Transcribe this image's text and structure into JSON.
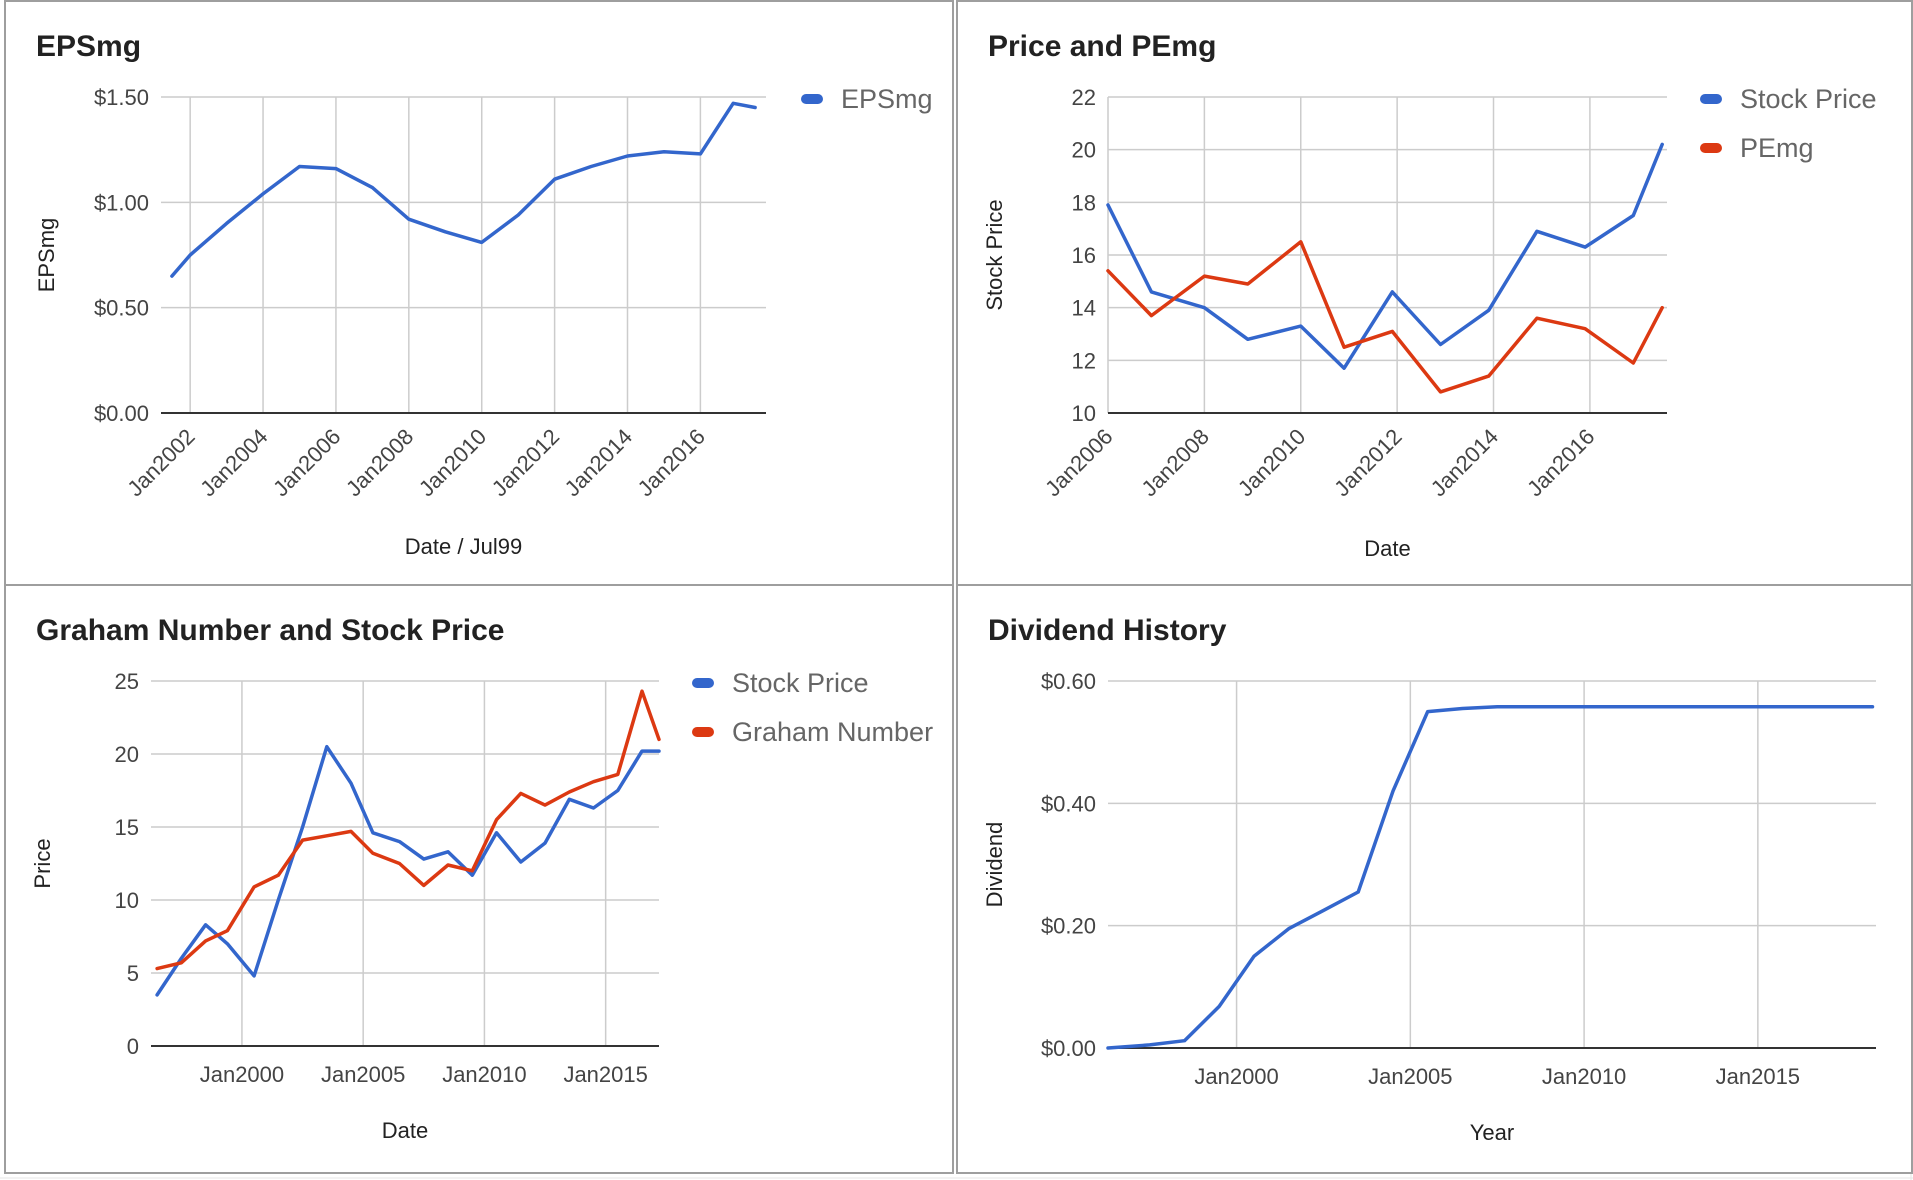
{
  "colors": {
    "blue": "#3366cc",
    "red": "#dc3912",
    "grid": "#cccccc",
    "axis": "#333333",
    "text": "#444444"
  },
  "chart_data": [
    {
      "id": "eps",
      "type": "line",
      "title": "EPSmg",
      "xlabel": "Date / Jul99",
      "ylabel": "EPSmg",
      "x_type": "year",
      "xlim": [
        2001.2,
        2017.8
      ],
      "ylim": [
        0,
        1.5
      ],
      "y_ticks": [
        0,
        0.5,
        1.0,
        1.5
      ],
      "y_tick_labels": [
        "$0.00",
        "$0.50",
        "$1.00",
        "$1.50"
      ],
      "x_ticks": [
        2002,
        2004,
        2006,
        2008,
        2010,
        2012,
        2014,
        2016
      ],
      "x_tick_labels": [
        "Jan2002",
        "Jan2004",
        "Jan2006",
        "Jan2008",
        "Jan2010",
        "Jan2012",
        "Jan2014",
        "Jan2016"
      ],
      "x_label_rotation": -45,
      "grid": true,
      "legend": "right",
      "series": [
        {
          "name": "EPSmg",
          "color": "#3366cc",
          "x": [
            2001.5,
            2002,
            2003,
            2004,
            2005,
            2006,
            2007,
            2008,
            2009,
            2010,
            2011,
            2012,
            2013,
            2014,
            2015,
            2016,
            2016.9,
            2017.5
          ],
          "y": [
            0.65,
            0.75,
            0.9,
            1.04,
            1.17,
            1.16,
            1.07,
            0.92,
            0.86,
            0.81,
            0.94,
            1.11,
            1.17,
            1.22,
            1.24,
            1.23,
            1.47,
            1.45
          ]
        }
      ]
    },
    {
      "id": "price_pe",
      "type": "line",
      "title": "Price and PEmg",
      "xlabel": "Date",
      "ylabel": "Stock Price",
      "x_type": "year",
      "xlim": [
        2006,
        2017.6
      ],
      "ylim": [
        10,
        22
      ],
      "y_ticks": [
        10,
        12,
        14,
        16,
        18,
        20,
        22
      ],
      "y_tick_labels": [
        "10",
        "12",
        "14",
        "16",
        "18",
        "20",
        "22"
      ],
      "x_ticks": [
        2006,
        2008,
        2010,
        2012,
        2014,
        2016
      ],
      "x_tick_labels": [
        "Jan2006",
        "Jan2008",
        "Jan2010",
        "Jan2012",
        "Jan2014",
        "Jan2016"
      ],
      "x_label_rotation": -45,
      "grid": true,
      "legend": "right",
      "series": [
        {
          "name": "Stock Price",
          "color": "#3366cc",
          "x": [
            2006.0,
            2006.9,
            2008.0,
            2008.9,
            2010.0,
            2010.9,
            2011.9,
            2012.9,
            2013.9,
            2014.9,
            2015.9,
            2016.9,
            2017.5
          ],
          "y": [
            17.9,
            14.6,
            14.0,
            12.8,
            13.3,
            11.7,
            14.6,
            12.6,
            13.9,
            16.9,
            16.3,
            17.5,
            20.2
          ]
        },
        {
          "name": "PEmg",
          "color": "#dc3912",
          "x": [
            2006.0,
            2006.9,
            2008.0,
            2008.9,
            2010.0,
            2010.9,
            2011.9,
            2012.9,
            2013.9,
            2014.9,
            2015.9,
            2016.9,
            2017.5
          ],
          "y": [
            15.4,
            13.7,
            15.2,
            14.9,
            16.5,
            12.5,
            13.1,
            10.8,
            11.4,
            13.6,
            13.2,
            11.9,
            14.0
          ]
        }
      ]
    },
    {
      "id": "graham",
      "type": "line",
      "title": "Graham Number and Stock Price",
      "xlabel": "Date",
      "ylabel": "Price",
      "x_type": "year",
      "xlim": [
        1996.25,
        2017.2
      ],
      "ylim": [
        0,
        25
      ],
      "y_ticks": [
        0,
        5,
        10,
        15,
        20,
        25
      ],
      "y_tick_labels": [
        "0",
        "5",
        "10",
        "15",
        "20",
        "25"
      ],
      "x_ticks": [
        2000,
        2005,
        2010,
        2015
      ],
      "x_tick_labels": [
        "Jan2000",
        "Jan2005",
        "Jan2010",
        "Jan2015"
      ],
      "x_label_rotation": 0,
      "grid": true,
      "legend": "right",
      "series": [
        {
          "name": "Stock Price",
          "color": "#3366cc",
          "x": [
            1996.5,
            1997.5,
            1998.5,
            1999.4,
            2000.5,
            2001.5,
            2002.5,
            2003.5,
            2004.5,
            2005.4,
            2006.5,
            2007.5,
            2008.5,
            2009.5,
            2010.5,
            2011.5,
            2012.5,
            2013.5,
            2014.5,
            2015.5,
            2016.5,
            2017.2
          ],
          "y": [
            3.5,
            6.0,
            8.3,
            7.0,
            4.8,
            10.0,
            15.0,
            20.5,
            18.0,
            14.6,
            14.0,
            12.8,
            13.3,
            11.7,
            14.6,
            12.6,
            13.9,
            16.9,
            16.3,
            17.5,
            20.2,
            20.2
          ]
        },
        {
          "name": "Graham Number",
          "color": "#dc3912",
          "x": [
            1996.5,
            1997.5,
            1998.5,
            1999.4,
            2000.5,
            2001.5,
            2002.5,
            2003.5,
            2004.5,
            2005.4,
            2006.5,
            2007.5,
            2008.5,
            2009.5,
            2010.5,
            2011.5,
            2012.5,
            2013.5,
            2014.5,
            2015.5,
            2016.5,
            2017.2
          ],
          "y": [
            5.3,
            5.7,
            7.2,
            7.9,
            10.9,
            11.7,
            14.1,
            14.4,
            14.7,
            13.2,
            12.5,
            11.0,
            12.4,
            12.0,
            15.5,
            17.3,
            16.5,
            17.4,
            18.1,
            18.6,
            24.3,
            21.0
          ]
        }
      ]
    },
    {
      "id": "dividend",
      "type": "line",
      "title": "Dividend History",
      "xlabel": "Year",
      "ylabel": "Dividend",
      "x_type": "year",
      "xlim": [
        1996.3,
        2018.4
      ],
      "ylim": [
        0,
        0.6
      ],
      "y_ticks": [
        0,
        0.2,
        0.4,
        0.6
      ],
      "y_tick_labels": [
        "$0.00",
        "$0.20",
        "$0.40",
        "$0.60"
      ],
      "x_ticks": [
        2000,
        2005,
        2010,
        2015
      ],
      "x_tick_labels": [
        "Jan2000",
        "Jan2005",
        "Jan2010",
        "Jan2015"
      ],
      "x_label_rotation": 0,
      "grid": true,
      "legend": "none",
      "series": [
        {
          "name": "",
          "color": "#3366cc",
          "x": [
            1996.3,
            1997.5,
            1998.5,
            1999.5,
            2000.5,
            2001.5,
            2002.5,
            2003.5,
            2004.5,
            2005.5,
            2006.5,
            2007.5,
            2008.5,
            2010.0,
            2012.0,
            2014.0,
            2016.0,
            2018.3
          ],
          "y": [
            0.0,
            0.005,
            0.012,
            0.068,
            0.15,
            0.195,
            0.225,
            0.255,
            0.42,
            0.55,
            0.555,
            0.558,
            0.558,
            0.558,
            0.558,
            0.558,
            0.558,
            0.558
          ]
        }
      ]
    }
  ]
}
